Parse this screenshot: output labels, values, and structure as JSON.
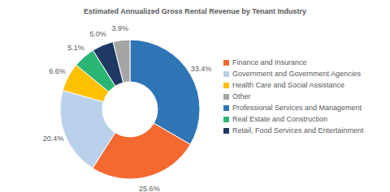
{
  "chart_data": {
    "type": "pie",
    "title": "Estimated Annualized Gross Rental Revenue by Tenant Industry",
    "categories": [
      "Professional Services and Management",
      "Finance and Insurance",
      "Government and Government Agencies",
      "Health Care and Social Assistance",
      "Real Estate and Construction",
      "Retail, Food Services and Entertainment",
      "Other"
    ],
    "values": [
      33.4,
      25.6,
      20.4,
      6.6,
      5.1,
      5.0,
      3.9
    ],
    "value_labels": [
      "33.4%",
      "25.6%",
      "20.4%",
      "6.6%",
      "5.1%",
      "5.0%",
      "3.9%"
    ],
    "colors": [
      "#2e75b6",
      "#f4692f",
      "#b9d1ea",
      "#ffc000",
      "#2bb673",
      "#1f3864",
      "#a5a5a5"
    ],
    "legend": "right",
    "data_labels": true
  }
}
